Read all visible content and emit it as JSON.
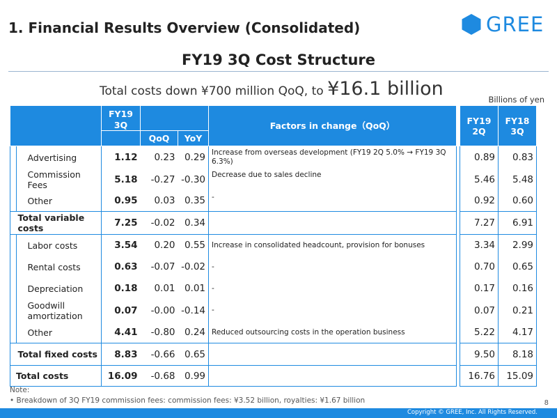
{
  "header": {
    "title": "1. Financial Results Overview (Consolidated)",
    "logo_text": "GREE",
    "subtitle": "FY19 3Q Cost Structure"
  },
  "headline": {
    "prefix": "Total costs down ¥700 million QoQ, to ",
    "highlight": "¥16.1 billion"
  },
  "unit_label": "Billions of yen",
  "table": {
    "col_headers": {
      "fy19_3q": "FY19\n3Q",
      "qoq": "QoQ",
      "yoy": "YoY",
      "factors": "Factors in change（QoQ）",
      "fy19_2q": "FY19\n2Q",
      "fy18_3q": "FY18\n3Q"
    },
    "rows": [
      {
        "label": "Advertising",
        "fy19_3q": "1.12",
        "qoq": "0.23",
        "yoy": "0.29",
        "factor": "Increase from overseas development (FY19 2Q 5.0% → FY19 3Q 6.3%)",
        "fy19_2q": "0.89",
        "fy18_3q": "0.83"
      },
      {
        "label": "Commission Fees",
        "fy19_3q": "5.18",
        "qoq": "-0.27",
        "yoy": "-0.30",
        "factor": "Decrease due to sales decline",
        "fy19_2q": "5.46",
        "fy18_3q": "5.48"
      },
      {
        "label": "Other",
        "fy19_3q": "0.95",
        "qoq": "0.03",
        "yoy": "0.35",
        "factor": "-",
        "fy19_2q": "0.92",
        "fy18_3q": "0.60"
      },
      {
        "label": "Total variable costs",
        "fy19_3q": "7.25",
        "qoq": "-0.02",
        "yoy": "0.34",
        "factor": "",
        "fy19_2q": "7.27",
        "fy18_3q": "6.91"
      },
      {
        "label": "Labor costs",
        "fy19_3q": "3.54",
        "qoq": "0.20",
        "yoy": "0.55",
        "factor": "Increase in consolidated headcount, provision for bonuses",
        "fy19_2q": "3.34",
        "fy18_3q": "2.99"
      },
      {
        "label": "Rental costs",
        "fy19_3q": "0.63",
        "qoq": "-0.07",
        "yoy": "-0.02",
        "factor": "-",
        "fy19_2q": "0.70",
        "fy18_3q": "0.65"
      },
      {
        "label": "Depreciation",
        "fy19_3q": "0.18",
        "qoq": "0.01",
        "yoy": "0.01",
        "factor": "-",
        "fy19_2q": "0.17",
        "fy18_3q": "0.16"
      },
      {
        "label": "Goodwill amortization",
        "fy19_3q": "0.07",
        "qoq": "-0.00",
        "yoy": "-0.14",
        "factor": "-",
        "fy19_2q": "0.07",
        "fy18_3q": "0.21"
      },
      {
        "label": "Other",
        "fy19_3q": "4.41",
        "qoq": "-0.80",
        "yoy": "0.24",
        "factor": "Reduced outsourcing costs in the operation business",
        "fy19_2q": "5.22",
        "fy18_3q": "4.17"
      },
      {
        "label": "Total fixed costs",
        "fy19_3q": "8.83",
        "qoq": "-0.66",
        "yoy": "0.65",
        "factor": "",
        "fy19_2q": "9.50",
        "fy18_3q": "8.18"
      },
      {
        "label": "Total costs",
        "fy19_3q": "16.09",
        "qoq": "-0.68",
        "yoy": "0.99",
        "factor": "",
        "fy19_2q": "16.76",
        "fy18_3q": "15.09"
      }
    ]
  },
  "note": {
    "title": "Note:",
    "line1": "• Breakdown of 3Q FY19 commission fees: commission fees: ¥3.52 billion, royalties: ¥1.67 billion"
  },
  "page_number": "8",
  "copyright": "Copyright © GREE, Inc. All Rights Reserved.",
  "colors": {
    "accent": "#1e8ae0",
    "rule": "#9ab4d0"
  }
}
